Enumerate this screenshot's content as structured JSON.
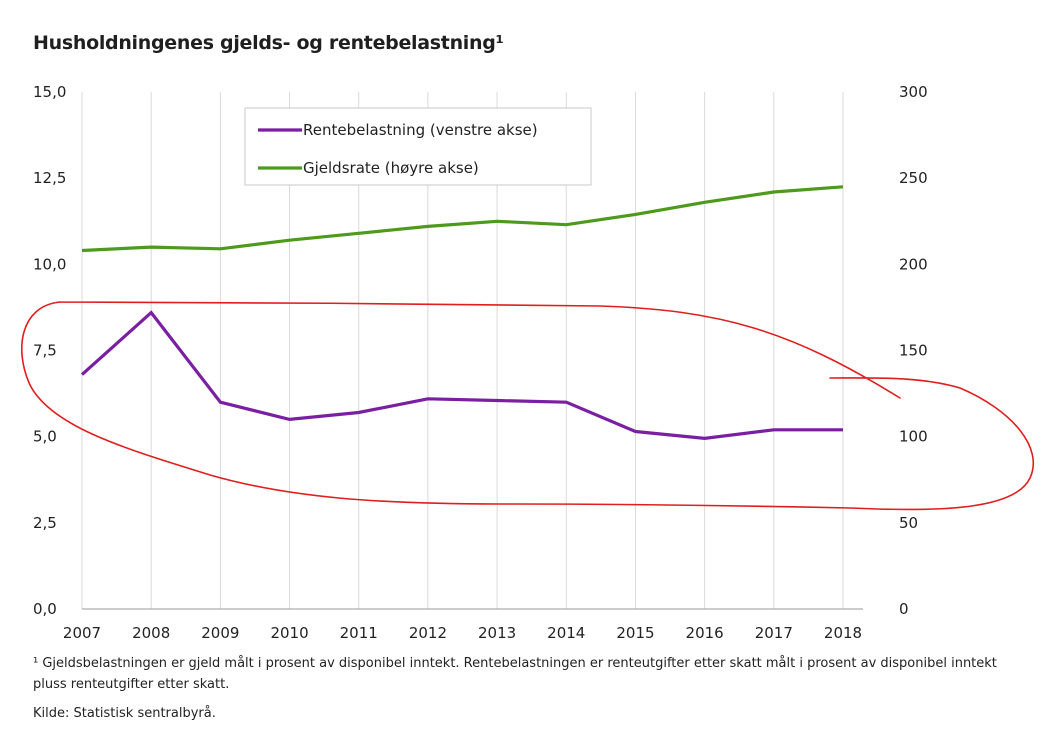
{
  "title": "Husholdningenes gjelds- og rentebelastning¹",
  "footnote": "¹ Gjeldsbelastningen er gjeld målt i prosent av disponibel inntekt. Rentebelastningen er renteutgifter etter skatt målt i prosent av disponibel inntekt pluss renteutgifter etter skatt.",
  "source": "Kilde: Statistisk sentralbyrå.",
  "colors": {
    "rentebelastning": "#7b1fa2",
    "gjeldsrate": "#4e9a1c",
    "annotation": "#e01e1e",
    "grid": "#d9d9d9"
  },
  "chart_data": {
    "type": "line",
    "x": [
      "2007",
      "2008",
      "2009",
      "2010",
      "2011",
      "2012",
      "2013",
      "2014",
      "2015",
      "2016",
      "2017",
      "2018"
    ],
    "series": [
      {
        "name": "Rentebelastning (venstre akse)",
        "axis": "left",
        "color": "#7b1fa2",
        "values": [
          6.8,
          8.6,
          6.0,
          5.5,
          5.7,
          6.1,
          6.05,
          6.0,
          5.15,
          4.95,
          5.2,
          5.2
        ]
      },
      {
        "name": "Gjeldsrate (høyre akse)",
        "axis": "right",
        "color": "#4e9a1c",
        "values": [
          208,
          210,
          209,
          214,
          218,
          222,
          225,
          223,
          229,
          236,
          242,
          245
        ]
      }
    ],
    "left_axis": {
      "ticks": [
        "0,0",
        "2,5",
        "5,0",
        "7,5",
        "10,0",
        "12,5",
        "15,0"
      ],
      "ylim": [
        0,
        15
      ]
    },
    "right_axis": {
      "ticks": [
        "0",
        "50",
        "100",
        "150",
        "200",
        "250",
        "300"
      ],
      "ylim": [
        0,
        300
      ]
    },
    "grid": "vertical",
    "legend": "top-left, boxed",
    "annotation": "hand-drawn red loop around the purple line"
  }
}
